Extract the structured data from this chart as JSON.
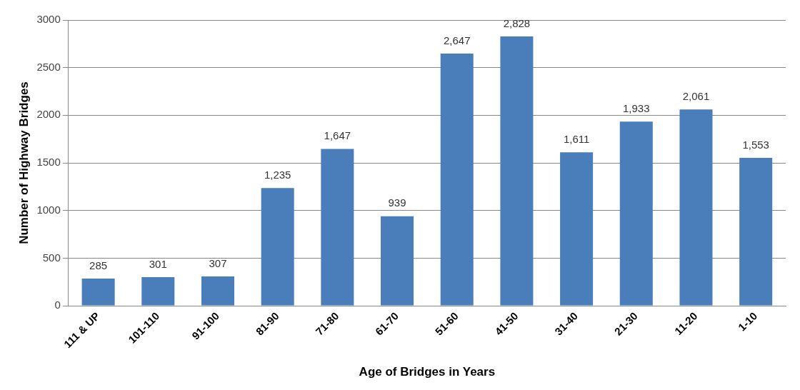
{
  "chart_data": {
    "type": "bar",
    "xlabel": "Age of Bridges in Years",
    "ylabel": "Number of Highway Bridges",
    "categories": [
      "111 & UP",
      "101-110",
      "91-100",
      "81-90",
      "71-80",
      "61-70",
      "51-60",
      "41-50",
      "31-40",
      "21-30",
      "11-20",
      "1-10"
    ],
    "values": [
      285,
      301,
      307,
      1235,
      1647,
      939,
      2647,
      2828,
      1611,
      1933,
      2061,
      1553
    ],
    "value_labels": [
      "285",
      "301",
      "307",
      "1,235",
      "1,647",
      "939",
      "2,647",
      "2,828",
      "1,611",
      "1,933",
      "2,061",
      "1,553"
    ],
    "color": "#4a7ebb",
    "ylim": [
      0,
      3000
    ],
    "yticks": [
      0,
      500,
      1000,
      1500,
      2000,
      2500,
      3000
    ],
    "grid": "y",
    "legend": false
  }
}
